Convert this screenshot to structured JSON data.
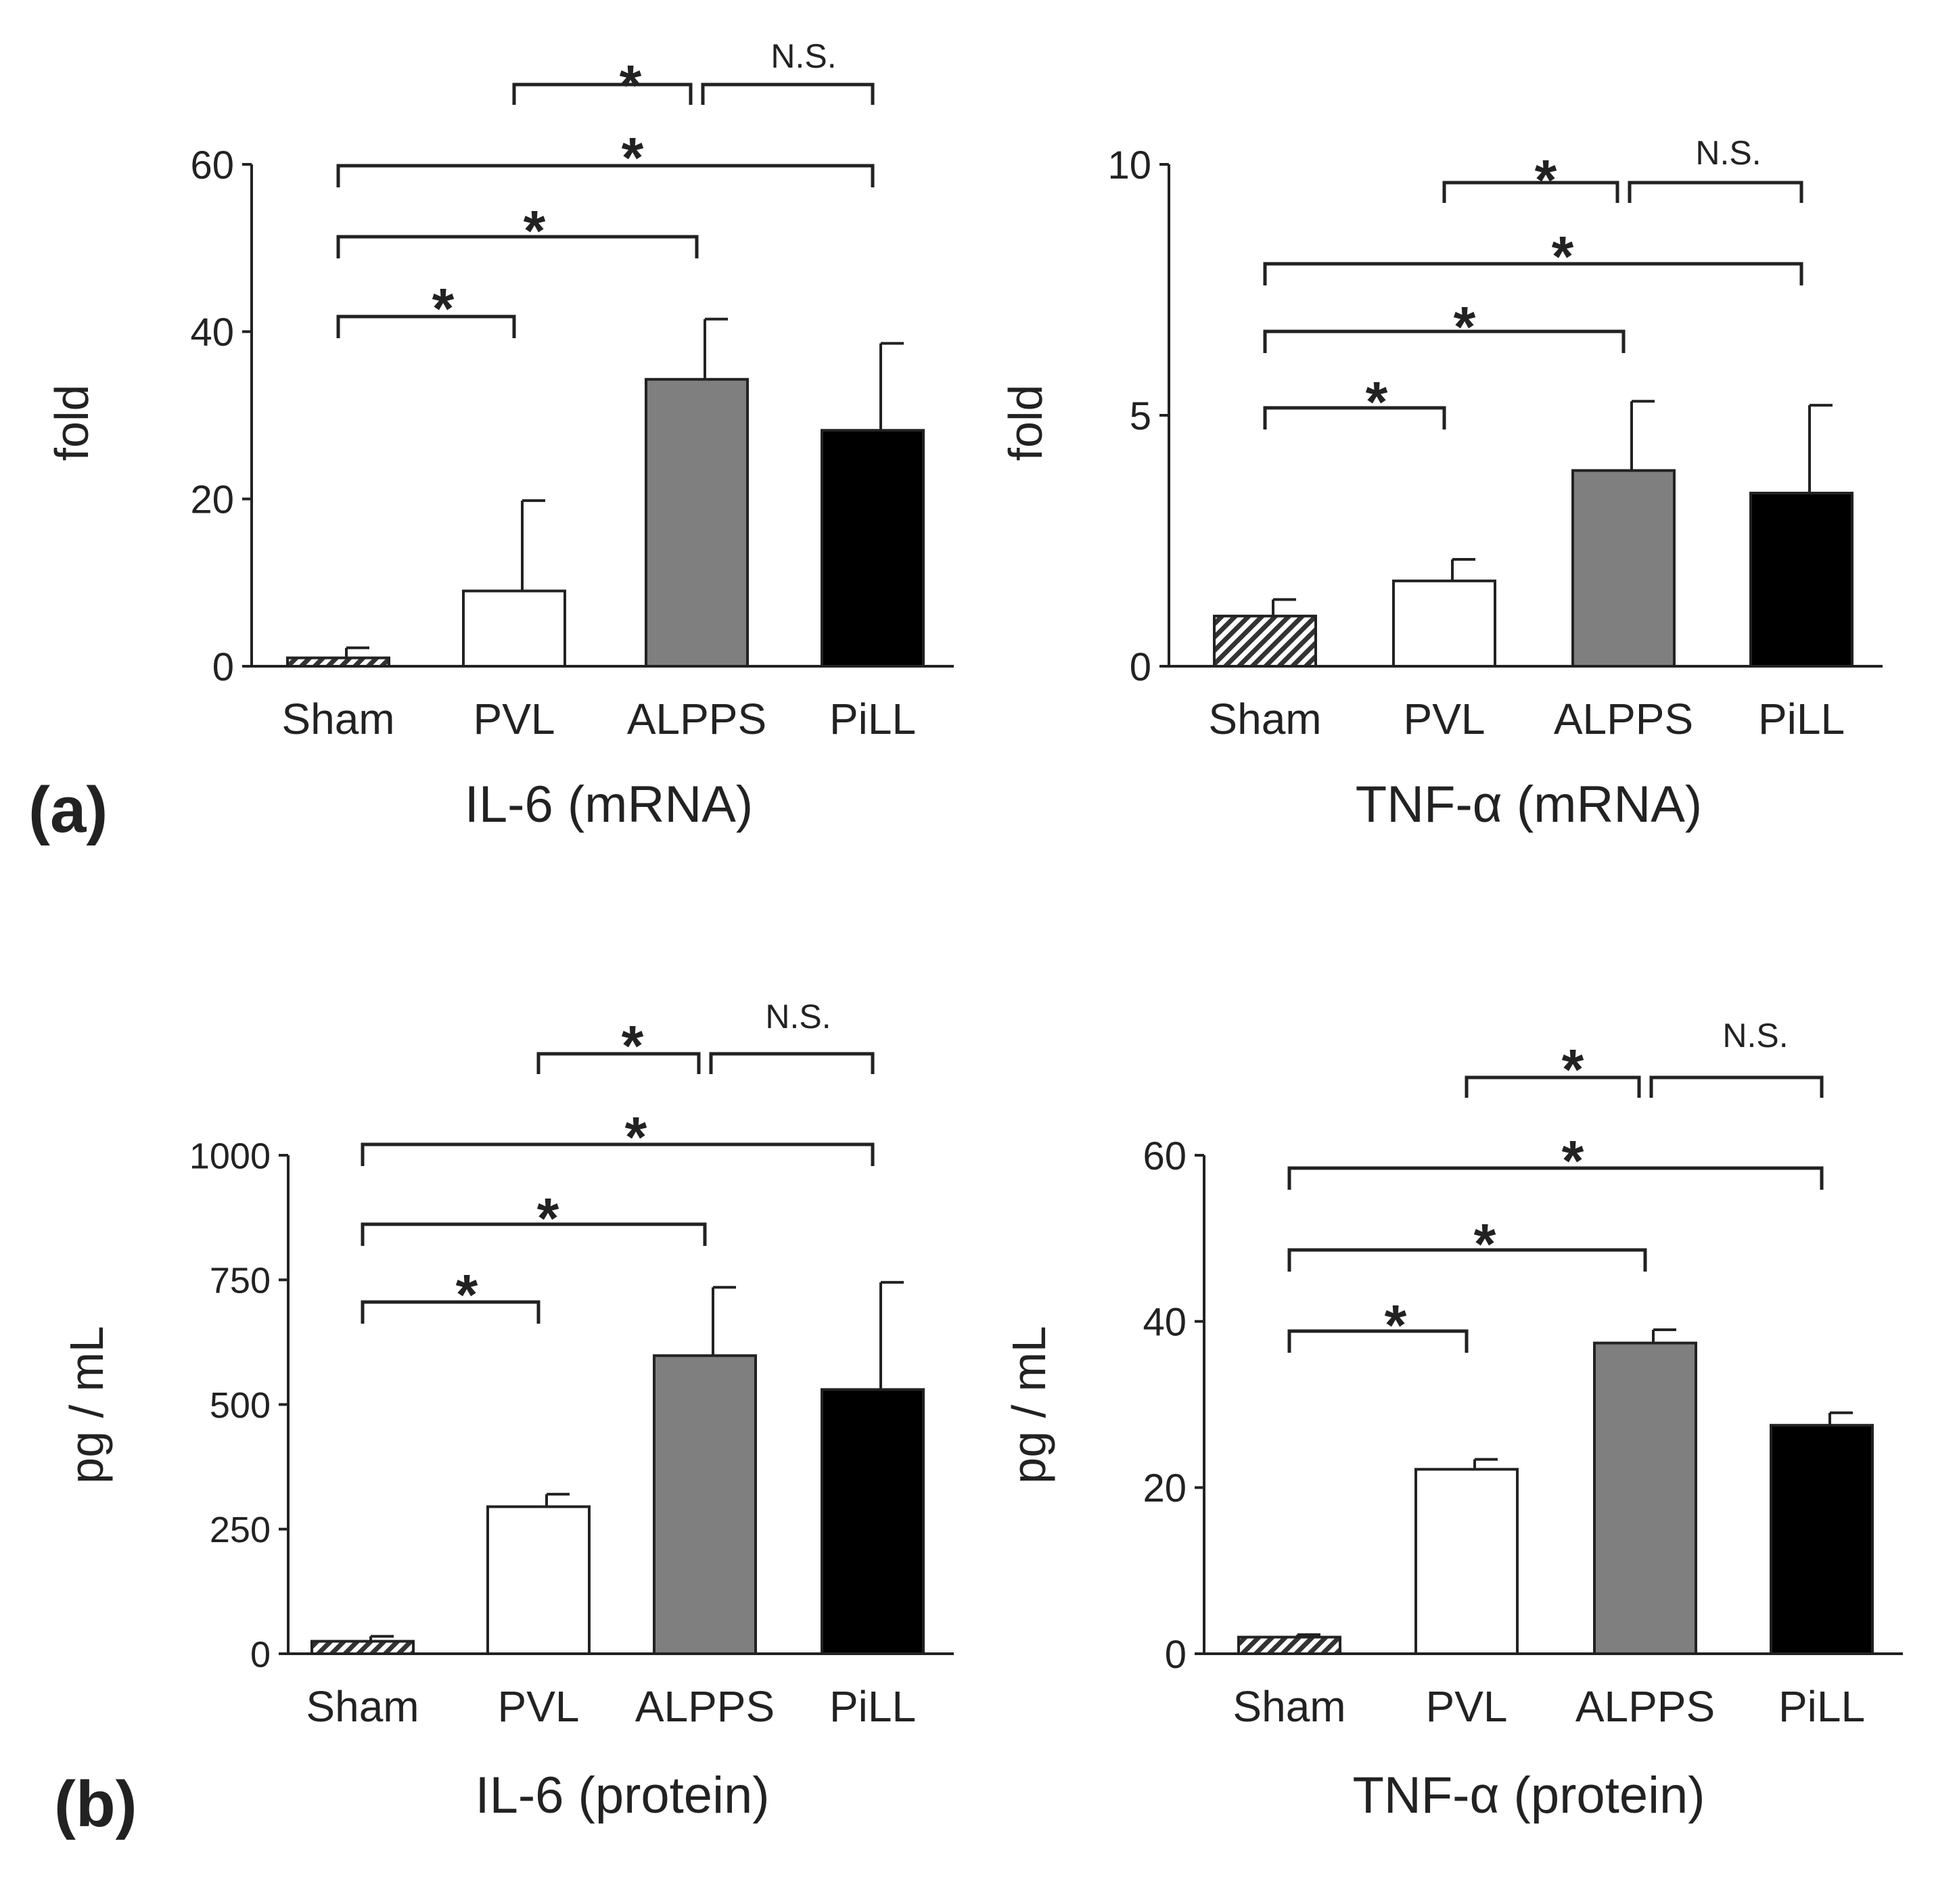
{
  "panels": {
    "a": {
      "letter": "(a)"
    },
    "b": {
      "letter": "(b)"
    }
  },
  "colors": {
    "sham_hatch": "#333333",
    "pvl": "#ffffff",
    "alpps": "#7f7f7f",
    "pill": "#000000",
    "axis": "#222222"
  },
  "chart_data": [
    {
      "type": "bar",
      "title": "IL-6 (mRNA)",
      "xlabel": "IL-6 (mRNA)",
      "ylabel": "fold",
      "categories": [
        "Sham",
        "PVL",
        "ALPPS",
        "PiLL"
      ],
      "values": [
        1.0,
        9.0,
        34.3,
        28.2
      ],
      "errors": [
        1.2,
        10.8,
        7.2,
        10.4
      ],
      "ylim": [
        0,
        60
      ],
      "yticks": [
        0,
        20,
        40,
        60
      ],
      "significance": [
        {
          "from": "Sham",
          "to": "PVL",
          "label": "*"
        },
        {
          "from": "Sham",
          "to": "ALPPS",
          "label": "*"
        },
        {
          "from": "Sham",
          "to": "PiLL",
          "label": "*"
        },
        {
          "from": "PVL",
          "to": "ALPPS",
          "label": "*"
        },
        {
          "from": "ALPPS",
          "to": "PiLL",
          "label": "N.S."
        }
      ]
    },
    {
      "type": "bar",
      "title": "TNF-α (mRNA)",
      "xlabel": "TNF-α (mRNA)",
      "ylabel": "fold",
      "categories": [
        "Sham",
        "PVL",
        "ALPPS",
        "PiLL"
      ],
      "values": [
        1.0,
        1.7,
        3.9,
        3.45
      ],
      "errors": [
        0.33,
        0.43,
        1.38,
        1.75
      ],
      "ylim": [
        0,
        10
      ],
      "yticks": [
        0,
        5,
        10
      ],
      "significance": [
        {
          "from": "Sham",
          "to": "PVL",
          "label": "*"
        },
        {
          "from": "Sham",
          "to": "ALPPS",
          "label": "*"
        },
        {
          "from": "Sham",
          "to": "PiLL",
          "label": "*"
        },
        {
          "from": "PVL",
          "to": "ALPPS",
          "label": "*"
        },
        {
          "from": "ALPPS",
          "to": "PiLL",
          "label": "N.S."
        }
      ]
    },
    {
      "type": "bar",
      "title": "IL-6 (protein)",
      "xlabel": "IL-6 (protein)",
      "ylabel": "pg / mL",
      "categories": [
        "Sham",
        "PVL",
        "ALPPS",
        "PiLL"
      ],
      "values": [
        25,
        295,
        598,
        530
      ],
      "errors": [
        10,
        25,
        137,
        215
      ],
      "ylim": [
        0,
        1000
      ],
      "yticks": [
        0,
        250,
        500,
        750,
        1000
      ],
      "significance": [
        {
          "from": "Sham",
          "to": "PVL",
          "label": "*"
        },
        {
          "from": "Sham",
          "to": "ALPPS",
          "label": "*"
        },
        {
          "from": "Sham",
          "to": "PiLL",
          "label": "*"
        },
        {
          "from": "PVL",
          "to": "ALPPS",
          "label": "*"
        },
        {
          "from": "ALPPS",
          "to": "PiLL",
          "label": "N.S."
        }
      ]
    },
    {
      "type": "bar",
      "title": "TNF-α (protein)",
      "xlabel": "TNF-α (protein)",
      "ylabel": "pg / mL",
      "categories": [
        "Sham",
        "PVL",
        "ALPPS",
        "PiLL"
      ],
      "values": [
        2.0,
        22.2,
        37.4,
        27.5
      ],
      "errors": [
        0.3,
        1.2,
        1.6,
        1.5
      ],
      "ylim": [
        0,
        60
      ],
      "yticks": [
        0,
        20,
        40,
        60
      ],
      "significance": [
        {
          "from": "Sham",
          "to": "PVL",
          "label": "*"
        },
        {
          "from": "Sham",
          "to": "ALPPS",
          "label": "*"
        },
        {
          "from": "Sham",
          "to": "PiLL",
          "label": "*"
        },
        {
          "from": "PVL",
          "to": "ALPPS",
          "label": "*"
        },
        {
          "from": "ALPPS",
          "to": "PiLL",
          "label": "N.S."
        }
      ]
    }
  ]
}
